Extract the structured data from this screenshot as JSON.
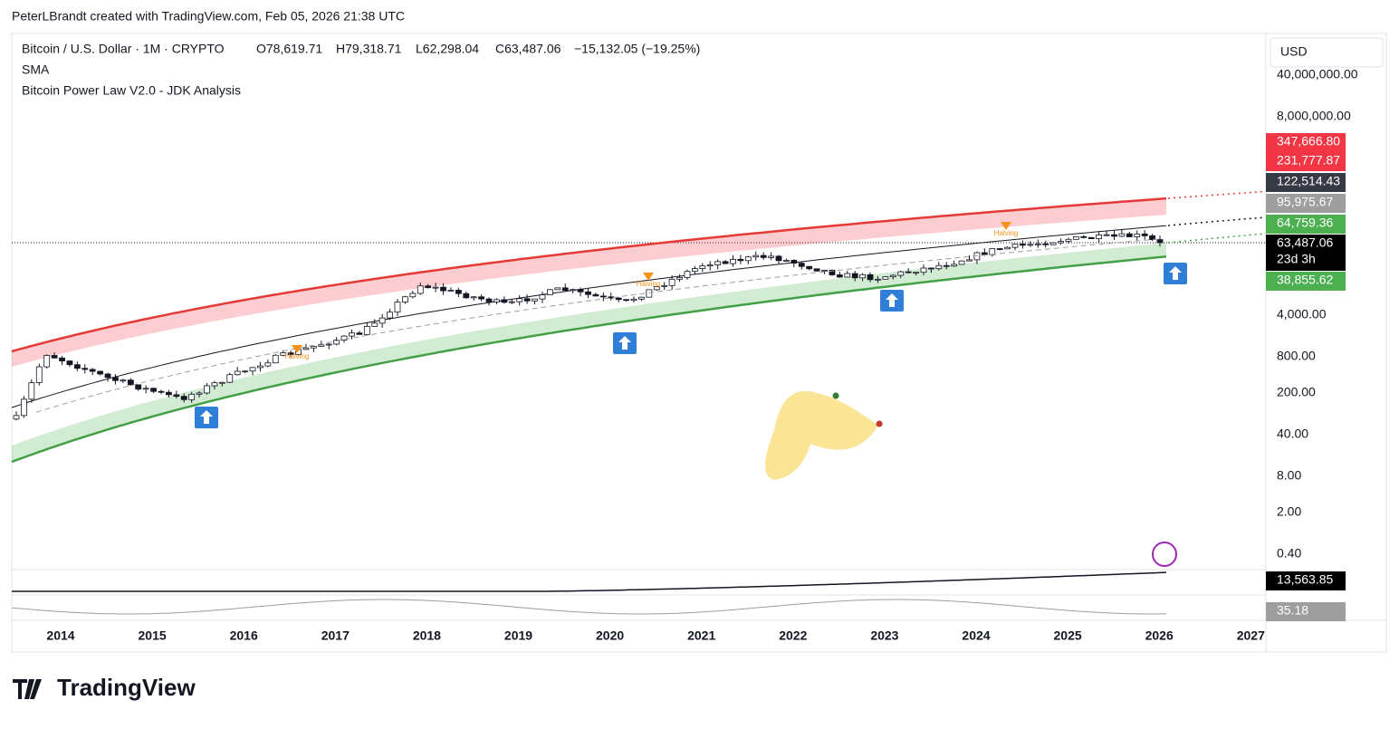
{
  "header": {
    "text": "PeterLBrandt created with TradingView.com, Feb 05, 2026 21:38 UTC"
  },
  "legend": {
    "symbol": "Bitcoin / U.S. Dollar · 1M · CRYPTO",
    "ohlc": [
      "O78,619.71",
      "H79,318.71",
      "L62,298.04",
      "C63,487.06",
      "−15,132.05 (−19.25%)"
    ],
    "indicators": [
      "SMA",
      "Bitcoin Power Law V2.0 - JDK Analysis"
    ]
  },
  "price_axis": {
    "currency": "USD",
    "labels": [
      "40,000,000.00",
      "8,000,000.00",
      "4,000.00",
      "800.00",
      "200.00",
      "40.00",
      "8.00",
      "2.00",
      "0.40"
    ],
    "tags": [
      {
        "text": "347,666.80",
        "color": "#f23645"
      },
      {
        "text": "231,777.87",
        "color": "#f23645"
      },
      {
        "text": "122,514.43",
        "color": "#363a45"
      },
      {
        "text": "95,975.67",
        "color": "#9e9e9e"
      },
      {
        "text": "64,759.36",
        "color": "#4caf50"
      },
      {
        "text": "63,487.06",
        "sub": "23d 3h",
        "color": "#000000"
      },
      {
        "text": "38,855.62",
        "color": "#4caf50"
      },
      {
        "text": "13,563.85",
        "color": "#000000"
      },
      {
        "text": "35.18",
        "color": "#9e9e9e"
      }
    ]
  },
  "time_axis": {
    "labels": [
      "2014",
      "2015",
      "2016",
      "2017",
      "2018",
      "2019",
      "2020",
      "2021",
      "2022",
      "2023",
      "2024",
      "2025",
      "2026",
      "2027"
    ]
  },
  "annotations": [
    "Halving",
    "Halving",
    "Halving"
  ],
  "footer": {
    "brand": "TradingView"
  }
}
